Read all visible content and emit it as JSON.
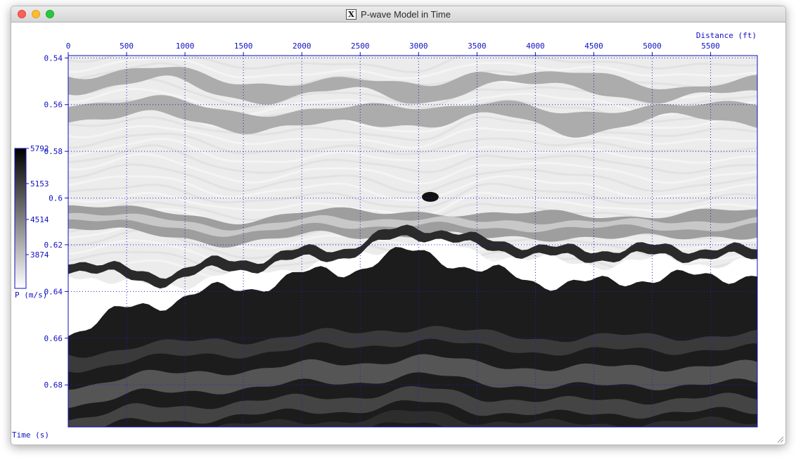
{
  "window": {
    "title": "P-wave Model in Time",
    "x_icon": "X"
  },
  "icons": {
    "close": "close-button-icon",
    "minimize": "minimize-button-icon",
    "maximize": "maximize-button-icon",
    "app": "x11-icon",
    "resize": "resize-grip-icon"
  },
  "colors": {
    "axis": "#1010c0",
    "grid": "#2020d0",
    "close": "#fe5f57",
    "minimize": "#febc2e",
    "maximize": "#28c840"
  },
  "chart_data": {
    "type": "heatmap",
    "title": "",
    "xlabel": "Distance (ft)",
    "ylabel": "Time (s)",
    "xlim": [
      0,
      5900
    ],
    "ylim": [
      0.539,
      0.698
    ],
    "x_ticks": [
      0,
      500,
      1000,
      1500,
      2000,
      2500,
      3000,
      3500,
      4000,
      4500,
      5000,
      5500
    ],
    "y_ticks": [
      0.54,
      0.56,
      0.58,
      0.6,
      0.62,
      0.64,
      0.66,
      0.68
    ],
    "y_tick_labels": [
      "0.54",
      "0.56",
      "0.58",
      "0.6",
      "0.62",
      "0.64",
      "0.66",
      "0.68"
    ],
    "grid": true,
    "colorbar": {
      "label": "P (m/s)",
      "ticks": [
        "5792",
        "5153",
        "4514",
        "3874"
      ],
      "range": [
        3874,
        5792
      ],
      "colormap": "grayscale, white = low, black = high"
    },
    "layers": [
      {
        "name_key": "upper gray band 1",
        "time": [
          0.548,
          0.543,
          0.552,
          0.548,
          0.553,
          0.545,
          0.547,
          0.552,
          0.549
        ],
        "thickness": 0.006,
        "value": 4500
      },
      {
        "name_key": "upper gray band 2",
        "time": [
          0.559,
          0.558,
          0.563,
          0.562,
          0.561,
          0.558,
          0.565,
          0.559,
          0.561
        ],
        "thickness": 0.007,
        "value": 4500
      },
      {
        "name_key": "mid gray band",
        "time": [
          0.603,
          0.606,
          0.609,
          0.606,
          0.605,
          0.608,
          0.606,
          0.608,
          0.605
        ],
        "thickness": 0.01,
        "value": 4600
      },
      {
        "name_key": "white interface top",
        "time": [
          0.632,
          0.638,
          0.632,
          0.627,
          0.618,
          0.624,
          0.628,
          0.627,
          0.628
        ],
        "thickness": 0.0,
        "value": 3874
      },
      {
        "name_key": "dark layer top",
        "time": [
          0.657,
          0.645,
          0.638,
          0.631,
          0.623,
          0.632,
          0.637,
          0.634,
          0.633
        ],
        "thickness": 0.0,
        "value": 5700
      }
    ],
    "layer_x": [
      0,
      700,
      1500,
      2300,
      3000,
      3600,
      4300,
      5100,
      5900
    ]
  }
}
